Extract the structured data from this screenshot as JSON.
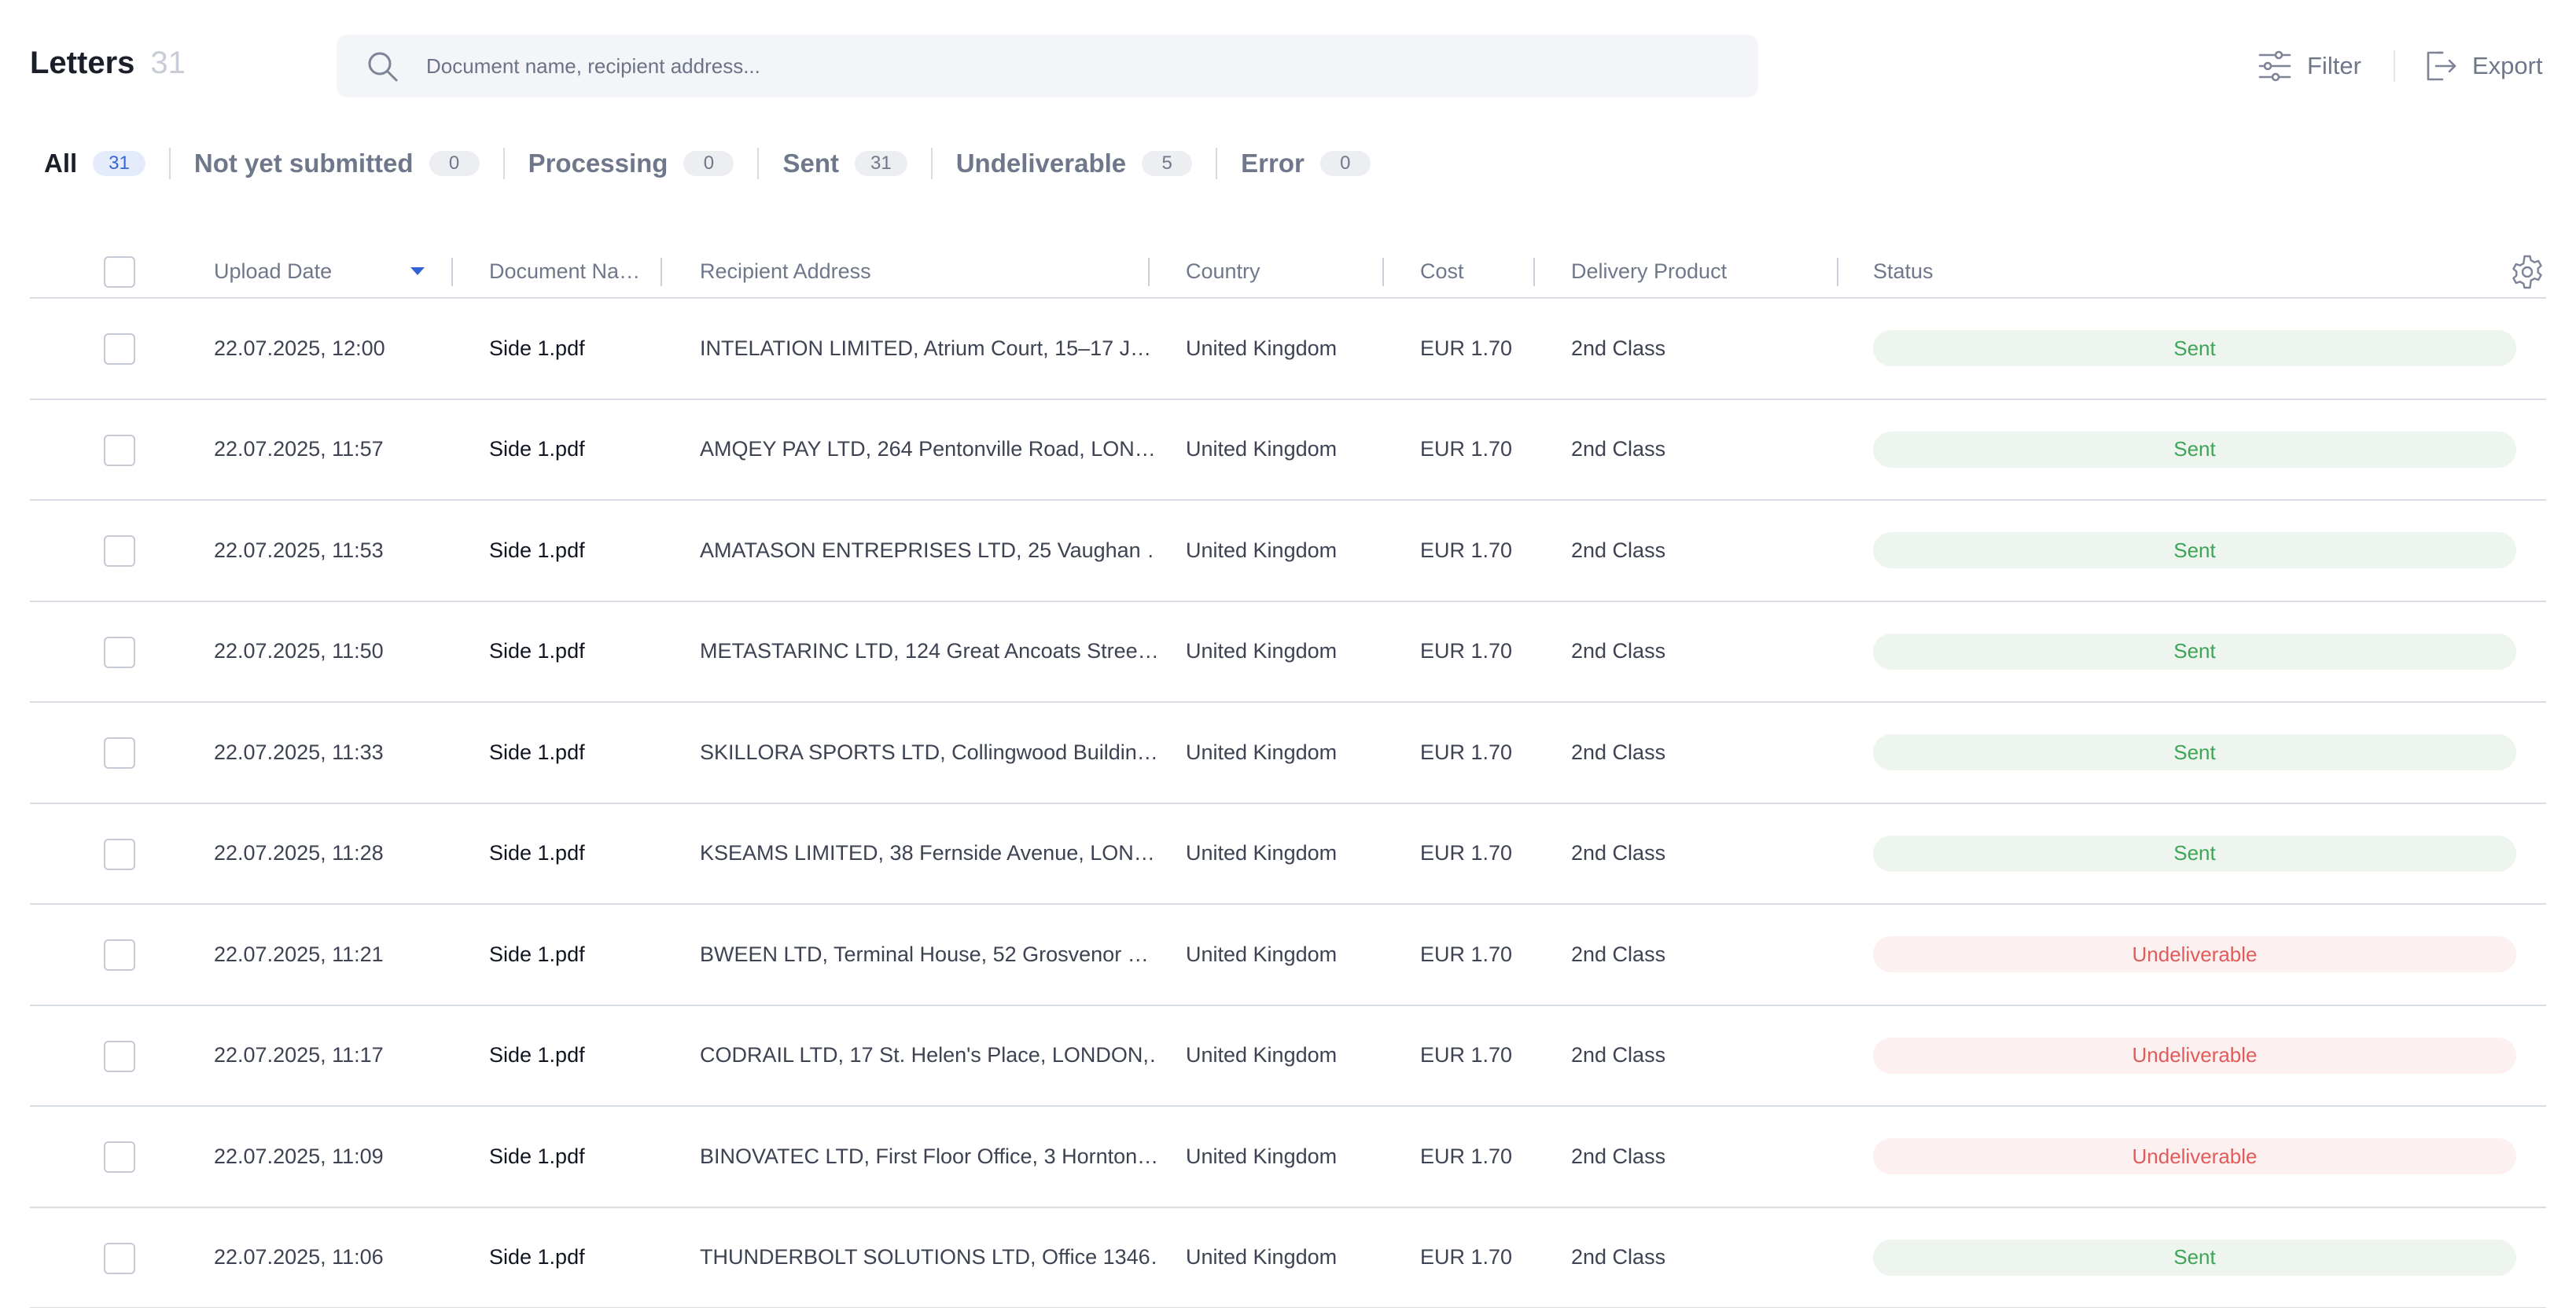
{
  "header": {
    "title": "Letters",
    "count": "31",
    "search_placeholder": "Document name, recipient address...",
    "filter_label": "Filter",
    "export_label": "Export"
  },
  "tabs": [
    {
      "label": "All",
      "count": "31"
    },
    {
      "label": "Not yet submitted",
      "count": "0"
    },
    {
      "label": "Processing",
      "count": "0"
    },
    {
      "label": "Sent",
      "count": "31"
    },
    {
      "label": "Undeliverable",
      "count": "5"
    },
    {
      "label": "Error",
      "count": "0"
    }
  ],
  "table": {
    "columns": [
      "Upload Date",
      "Document Na…",
      "Recipient Address",
      "Country",
      "Cost",
      "Delivery Product",
      "Status"
    ],
    "rows": [
      {
        "date": "22.07.2025, 12:00",
        "doc": "Side 1.pdf",
        "address": "INTELATION LIMITED, Atrium Court, 15–17 J…",
        "country": "United Kingdom",
        "cost": "EUR 1.70",
        "product": "2nd Class",
        "status": "Sent"
      },
      {
        "date": "22.07.2025, 11:57",
        "doc": "Side 1.pdf",
        "address": "AMQEY PAY LTD, 264 Pentonville Road, LON…",
        "country": "United Kingdom",
        "cost": "EUR 1.70",
        "product": "2nd Class",
        "status": "Sent"
      },
      {
        "date": "22.07.2025, 11:53",
        "doc": "Side 1.pdf",
        "address": "AMATASON ENTREPRISES LTD, 25 Vaughan …",
        "country": "United Kingdom",
        "cost": "EUR 1.70",
        "product": "2nd Class",
        "status": "Sent"
      },
      {
        "date": "22.07.2025, 11:50",
        "doc": "Side 1.pdf",
        "address": "METASTARINC LTD, 124 Great Ancoats Stree…",
        "country": "United Kingdom",
        "cost": "EUR 1.70",
        "product": "2nd Class",
        "status": "Sent"
      },
      {
        "date": "22.07.2025, 11:33",
        "doc": "Side 1.pdf",
        "address": "SKILLORA SPORTS LTD, Collingwood Buildin…",
        "country": "United Kingdom",
        "cost": "EUR 1.70",
        "product": "2nd Class",
        "status": "Sent"
      },
      {
        "date": "22.07.2025, 11:28",
        "doc": "Side 1.pdf",
        "address": "KSEAMS LIMITED, 38 Fernside Avenue, LON…",
        "country": "United Kingdom",
        "cost": "EUR 1.70",
        "product": "2nd Class",
        "status": "Sent"
      },
      {
        "date": "22.07.2025, 11:21",
        "doc": "Side 1.pdf",
        "address": "BWEEN LTD, Terminal House, 52 Grosvenor …",
        "country": "United Kingdom",
        "cost": "EUR 1.70",
        "product": "2nd Class",
        "status": "Undeliverable"
      },
      {
        "date": "22.07.2025, 11:17",
        "doc": "Side 1.pdf",
        "address": "CODRAIL LTD, 17 St. Helen's Place, LONDON,…",
        "country": "United Kingdom",
        "cost": "EUR 1.70",
        "product": "2nd Class",
        "status": "Undeliverable"
      },
      {
        "date": "22.07.2025, 11:09",
        "doc": "Side 1.pdf",
        "address": "BINOVATEC LTD, First Floor Office, 3 Hornton…",
        "country": "United Kingdom",
        "cost": "EUR 1.70",
        "product": "2nd Class",
        "status": "Undeliverable"
      },
      {
        "date": "22.07.2025, 11:06",
        "doc": "Side 1.pdf",
        "address": "THUNDERBOLT SOLUTIONS LTD, Office 1346…",
        "country": "United Kingdom",
        "cost": "EUR 1.70",
        "product": "2nd Class",
        "status": "Sent"
      }
    ]
  },
  "colors": {
    "accent": "#2f63d6",
    "sent_text": "#3ea556",
    "sent_bg": "#eef5ef",
    "undeliverable_text": "#e25b5b",
    "undeliverable_bg": "#fdf0f0"
  },
  "icons": {
    "search": "search-icon",
    "filter": "filter-sliders-icon",
    "export": "export-icon",
    "settings": "gear-icon",
    "sort": "sort-desc-icon"
  }
}
